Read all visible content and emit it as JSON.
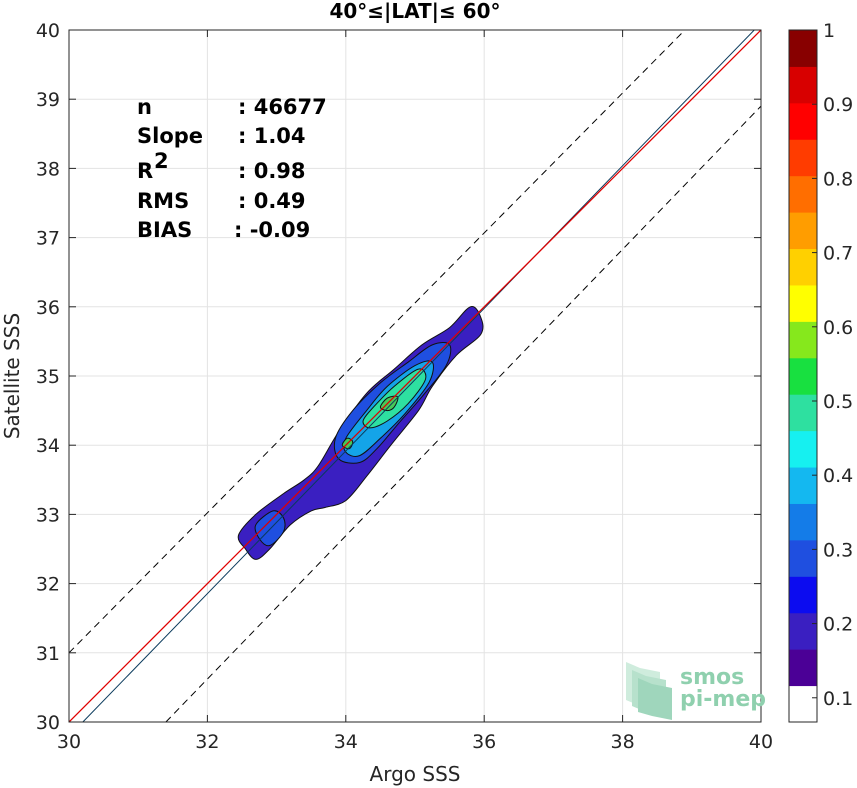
{
  "chart_data": {
    "type": "scatter-density-contour",
    "title": "40°≤|LAT|≤ 60°",
    "xlabel": "Argo SSS",
    "ylabel": "Satellite SSS",
    "xlim": [
      30,
      40
    ],
    "ylim": [
      30,
      40
    ],
    "xticks": [
      "30",
      "32",
      "34",
      "36",
      "38",
      "40"
    ],
    "yticks": [
      "30",
      "31",
      "32",
      "33",
      "34",
      "35",
      "36",
      "37",
      "38",
      "39",
      "40"
    ],
    "grid": true,
    "stats": [
      {
        "label": "n",
        "value": ": 46677"
      },
      {
        "label": "Slope",
        "value": ": 1.04"
      },
      {
        "label": "R",
        "sup": "2",
        "value": ": 0.98"
      },
      {
        "label": "RMS",
        "value": ": 0.49"
      },
      {
        "label": "BIAS",
        "value": ": -0.09"
      }
    ],
    "lines": {
      "identity": {
        "x": [
          30,
          40
        ],
        "y": [
          30,
          40
        ],
        "color": "#e00000"
      },
      "regression": {
        "x": [
          30.2,
          40
        ],
        "y": [
          30,
          40.1
        ],
        "color": "#0a3a5c"
      },
      "upper_band": {
        "x": [
          30,
          38.9
        ],
        "y": [
          31,
          40
        ]
      },
      "lower_band": {
        "x": [
          31.4,
          40
        ],
        "y": [
          30,
          38.9
        ]
      }
    },
    "contours": [
      {
        "level": 0.05,
        "color": "#3a1fc1",
        "points": [
          [
            32.55,
            32.5
          ],
          [
            32.45,
            32.7
          ],
          [
            32.7,
            33.0
          ],
          [
            33.1,
            33.3
          ],
          [
            33.4,
            33.5
          ],
          [
            33.6,
            33.7
          ],
          [
            33.9,
            34.2
          ],
          [
            34.3,
            34.75
          ],
          [
            34.7,
            35.1
          ],
          [
            35.1,
            35.45
          ],
          [
            35.5,
            35.7
          ],
          [
            35.8,
            36.0
          ],
          [
            35.95,
            35.85
          ],
          [
            35.95,
            35.6
          ],
          [
            35.6,
            35.3
          ],
          [
            35.25,
            34.85
          ],
          [
            35.05,
            34.5
          ],
          [
            34.65,
            34.0
          ],
          [
            34.3,
            33.55
          ],
          [
            34.0,
            33.2
          ],
          [
            33.7,
            33.1
          ],
          [
            33.5,
            33.05
          ],
          [
            33.2,
            32.85
          ],
          [
            32.9,
            32.5
          ],
          [
            32.7,
            32.35
          ]
        ]
      },
      {
        "level": 0.25,
        "color": "#1f4fe0",
        "points": [
          [
            32.75,
            32.65
          ],
          [
            32.7,
            32.85
          ],
          [
            32.95,
            33.05
          ],
          [
            33.1,
            32.95
          ],
          [
            33.1,
            32.75
          ],
          [
            32.9,
            32.55
          ]
        ]
      },
      {
        "level": 0.25,
        "color": "#1f4fe0",
        "points": [
          [
            33.9,
            33.8
          ],
          [
            33.85,
            34.1
          ],
          [
            34.1,
            34.5
          ],
          [
            34.5,
            34.9
          ],
          [
            34.9,
            35.2
          ],
          [
            35.25,
            35.45
          ],
          [
            35.5,
            35.45
          ],
          [
            35.45,
            35.15
          ],
          [
            35.1,
            34.7
          ],
          [
            34.75,
            34.3
          ],
          [
            34.45,
            33.95
          ],
          [
            34.2,
            33.75
          ]
        ]
      },
      {
        "level": 0.3,
        "color": "#14a4e8",
        "points": [
          [
            34.0,
            33.9
          ],
          [
            34.0,
            34.1
          ],
          [
            34.3,
            34.5
          ],
          [
            34.6,
            34.85
          ],
          [
            35.0,
            35.15
          ],
          [
            35.25,
            35.2
          ],
          [
            35.2,
            34.9
          ],
          [
            34.85,
            34.45
          ],
          [
            34.5,
            34.1
          ],
          [
            34.2,
            33.85
          ]
        ]
      },
      {
        "level": 0.4,
        "color": "#2ee0a0",
        "points": [
          [
            34.25,
            34.35
          ],
          [
            34.4,
            34.55
          ],
          [
            34.7,
            34.85
          ],
          [
            35.05,
            35.1
          ],
          [
            35.15,
            34.95
          ],
          [
            34.9,
            34.6
          ],
          [
            34.6,
            34.35
          ],
          [
            34.35,
            34.25
          ]
        ]
      },
      {
        "level": 0.5,
        "color": "#47c858",
        "points": [
          [
            33.95,
            34.0
          ],
          [
            34.02,
            34.1
          ],
          [
            34.1,
            34.05
          ],
          [
            34.05,
            33.95
          ]
        ]
      },
      {
        "level": 0.5,
        "color": "#47c858",
        "points": [
          [
            34.5,
            34.55
          ],
          [
            34.6,
            34.68
          ],
          [
            34.75,
            34.7
          ],
          [
            34.7,
            34.55
          ],
          [
            34.6,
            34.5
          ]
        ]
      }
    ],
    "colorbar": {
      "ticks": [
        "0.1",
        "0.2",
        "0.3",
        "0.4",
        "0.5",
        "0.6",
        "0.7",
        "0.8",
        "0.9",
        "1"
      ],
      "colors": [
        "#ffffff",
        "#4b0096",
        "#3a1fc1",
        "#0c0cf0",
        "#1f4fe0",
        "#147ce8",
        "#14b8f0",
        "#16f0f0",
        "#2ee0a0",
        "#18e040",
        "#86e81c",
        "#ffff00",
        "#ffd000",
        "#ff9d00",
        "#ff6e00",
        "#ff3c00",
        "#ff0000",
        "#d80000",
        "#880000"
      ]
    }
  },
  "logo": {
    "line1": "smos",
    "line2": "pi-mep"
  }
}
